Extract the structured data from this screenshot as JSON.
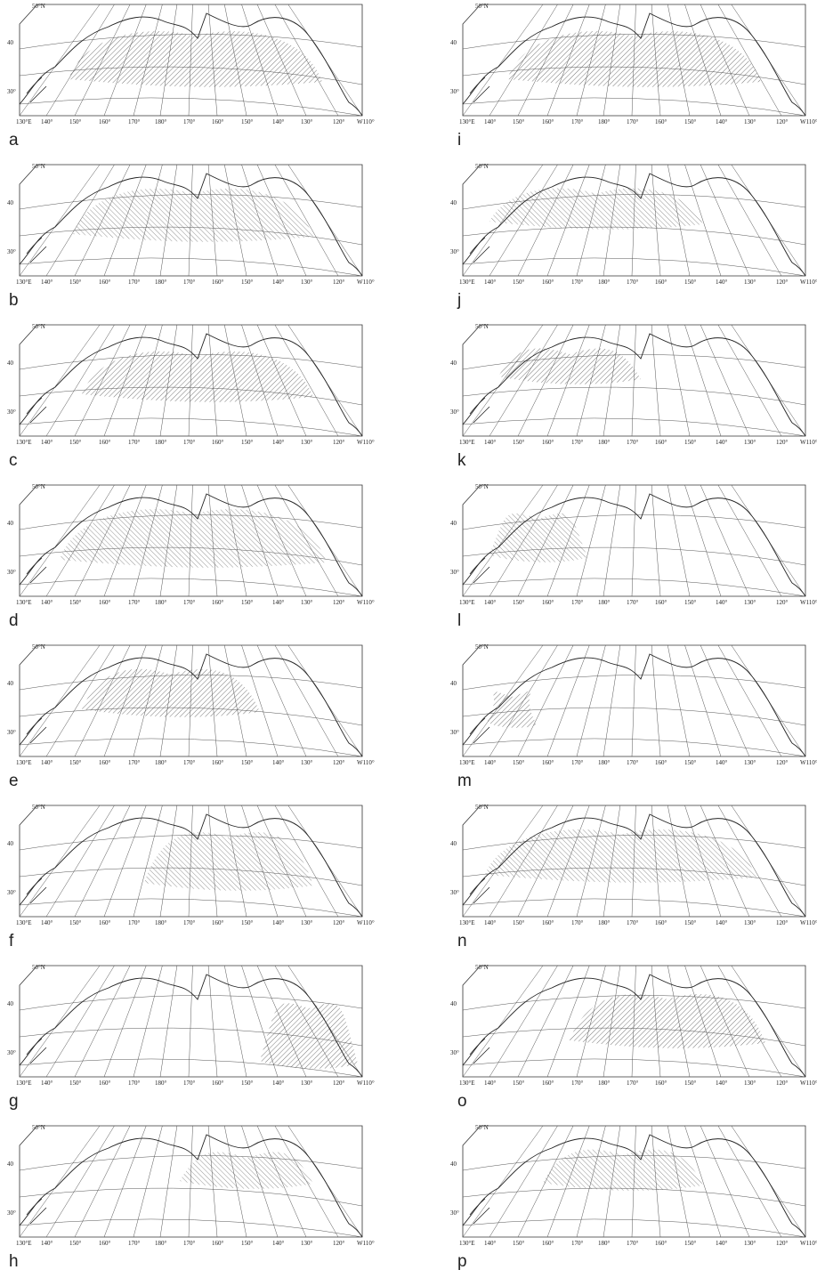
{
  "lat_labels": [
    "50°N",
    "40",
    "30°"
  ],
  "lon_labels": [
    "130°E",
    "140°",
    "150°",
    "160°",
    "170°",
    "180°",
    "170°",
    "160°",
    "150°",
    "140°",
    "130°",
    "120°",
    "W110°"
  ],
  "panels": [
    "a",
    "b",
    "c",
    "d",
    "e",
    "f",
    "g",
    "h",
    "i",
    "j",
    "k",
    "l",
    "m",
    "n",
    "o",
    "p"
  ]
}
